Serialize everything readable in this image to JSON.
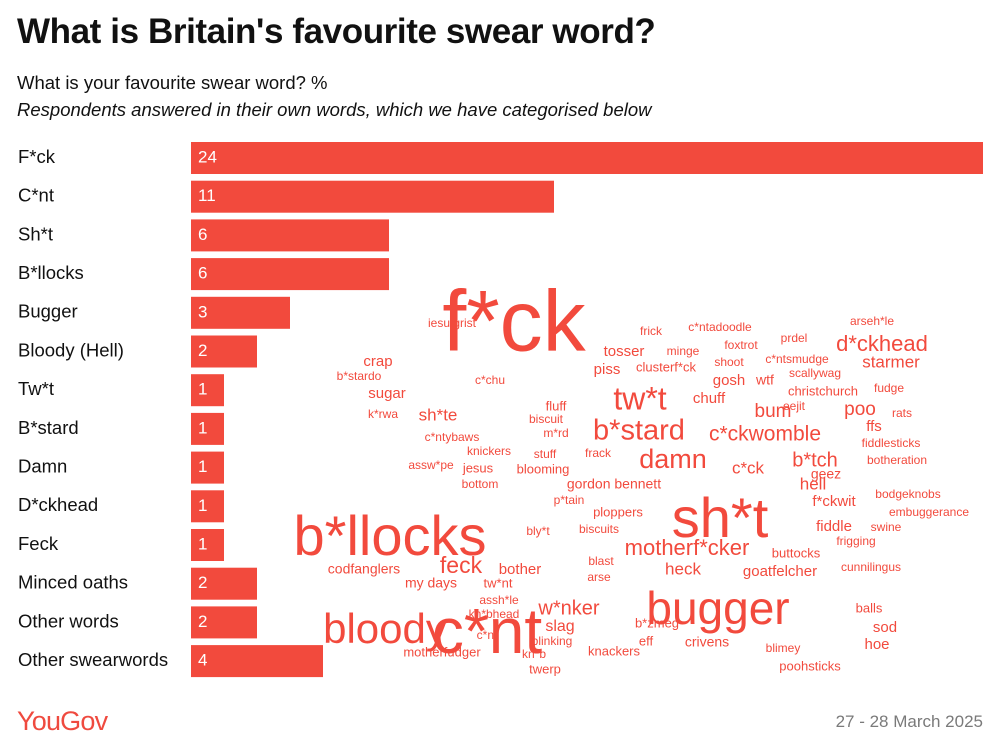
{
  "header": {
    "title": "What is Britain's favourite swear word?",
    "subtitle": "What is your favourite swear word? %",
    "note": "Respondents answered in their own words, which we have categorised below"
  },
  "footer": {
    "logo": "YouGov",
    "date": "27 - 28 March 2025"
  },
  "colors": {
    "bar": "#f24a3d",
    "label_inside": "#ffffff",
    "label_outside": "#111111"
  },
  "chart_data": {
    "type": "bar",
    "orientation": "horizontal",
    "categories": [
      "F*ck",
      "C*nt",
      "Sh*t",
      "B*llocks",
      "Bugger",
      "Bloody (Hell)",
      "Tw*t",
      "B*stard",
      "Damn",
      "D*ckhead",
      "Feck",
      "Minced oaths",
      "Other words",
      "Other swearwords"
    ],
    "values": [
      24,
      11,
      6,
      6,
      3,
      2,
      1,
      1,
      1,
      1,
      1,
      2,
      2,
      4
    ],
    "unit": "%",
    "grid": false
  },
  "word_cloud": [
    {
      "text": "f*ck",
      "size": 86
    },
    {
      "text": "c*nt",
      "size": 64
    },
    {
      "text": "sh*t",
      "size": 56
    },
    {
      "text": "b*llocks",
      "size": 56
    },
    {
      "text": "bugger",
      "size": 46
    },
    {
      "text": "bloody",
      "size": 42
    },
    {
      "text": "tw*t",
      "size": 32
    },
    {
      "text": "b*stard",
      "size": 29
    },
    {
      "text": "damn",
      "size": 27
    },
    {
      "text": "motherf*cker",
      "size": 22
    },
    {
      "text": "feck",
      "size": 23
    },
    {
      "text": "d*ckhead",
      "size": 22
    },
    {
      "text": "c*ckwomble",
      "size": 21
    },
    {
      "text": "b*tch",
      "size": 20
    },
    {
      "text": "w*nker",
      "size": 20
    },
    {
      "text": "bum",
      "size": 19
    },
    {
      "text": "poo",
      "size": 19
    },
    {
      "text": "starmer",
      "size": 17
    },
    {
      "text": "sh*te",
      "size": 17
    },
    {
      "text": "c*ck",
      "size": 17
    },
    {
      "text": "heck",
      "size": 17
    },
    {
      "text": "hell",
      "size": 17
    },
    {
      "text": "slag",
      "size": 16
    },
    {
      "text": "bother",
      "size": 15
    },
    {
      "text": "crap",
      "size": 15
    },
    {
      "text": "tosser",
      "size": 15
    },
    {
      "text": "piss",
      "size": 15
    },
    {
      "text": "sugar",
      "size": 15
    },
    {
      "text": "chuff",
      "size": 15
    },
    {
      "text": "gosh",
      "size": 15
    },
    {
      "text": "goatfelcher",
      "size": 15
    },
    {
      "text": "fiddle",
      "size": 15
    },
    {
      "text": "f*ckwit",
      "size": 15
    },
    {
      "text": "sod",
      "size": 15
    },
    {
      "text": "hoe",
      "size": 15
    },
    {
      "text": "ffs",
      "size": 15
    },
    {
      "text": "wtf",
      "size": 14
    },
    {
      "text": "geez",
      "size": 14
    },
    {
      "text": "my days",
      "size": 14
    },
    {
      "text": "codfanglers",
      "size": 14
    },
    {
      "text": "gordon bennett",
      "size": 14
    },
    {
      "text": "crivens",
      "size": 14
    },
    {
      "text": "twerp",
      "size": 13
    },
    {
      "text": "eff",
      "size": 13
    },
    {
      "text": "fluff",
      "size": 13
    },
    {
      "text": "jesus",
      "size": 13
    },
    {
      "text": "blooming",
      "size": 13
    },
    {
      "text": "ploppers",
      "size": 13
    },
    {
      "text": "knackers",
      "size": 13
    },
    {
      "text": "buttocks",
      "size": 13
    },
    {
      "text": "balls",
      "size": 13
    },
    {
      "text": "b*zmeg",
      "size": 13
    },
    {
      "text": "tw*nt",
      "size": 13
    },
    {
      "text": "motherfudger",
      "size": 13
    },
    {
      "text": "poohsticks",
      "size": 13
    },
    {
      "text": "christchurch",
      "size": 13
    },
    {
      "text": "clusterf*ck",
      "size": 13
    },
    {
      "text": "shoot",
      "size": 12
    },
    {
      "text": "frack",
      "size": 12
    },
    {
      "text": "bottom",
      "size": 12
    },
    {
      "text": "biscuit",
      "size": 12
    },
    {
      "text": "biscuits",
      "size": 12
    },
    {
      "text": "blast",
      "size": 12
    },
    {
      "text": "arse",
      "size": 12
    },
    {
      "text": "minge",
      "size": 12
    },
    {
      "text": "frick",
      "size": 12
    },
    {
      "text": "prdel",
      "size": 12
    },
    {
      "text": "foxtrot",
      "size": 12
    },
    {
      "text": "c*ntadoodle",
      "size": 12
    },
    {
      "text": "c*ntsmudge",
      "size": 12
    },
    {
      "text": "scallywag",
      "size": 12
    },
    {
      "text": "arseh*le",
      "size": 12
    },
    {
      "text": "fudge",
      "size": 12
    },
    {
      "text": "eejit",
      "size": 12
    },
    {
      "text": "rats",
      "size": 12
    },
    {
      "text": "fiddlesticks",
      "size": 12
    },
    {
      "text": "botheration",
      "size": 12
    },
    {
      "text": "bodgeknobs",
      "size": 12
    },
    {
      "text": "embuggerance",
      "size": 12
    },
    {
      "text": "swine",
      "size": 12
    },
    {
      "text": "frigging",
      "size": 12
    },
    {
      "text": "cunnilingus",
      "size": 12
    },
    {
      "text": "blimey",
      "size": 12
    },
    {
      "text": "blinking",
      "size": 12
    },
    {
      "text": "kn*b",
      "size": 12
    },
    {
      "text": "kn*bhead",
      "size": 12
    },
    {
      "text": "assh*le",
      "size": 12
    },
    {
      "text": "c*nt",
      "size": 12
    },
    {
      "text": "bly*t",
      "size": 12
    },
    {
      "text": "p*tain",
      "size": 12
    },
    {
      "text": "stuff",
      "size": 12
    },
    {
      "text": "knickers",
      "size": 12
    },
    {
      "text": "assw*pe",
      "size": 12
    },
    {
      "text": "c*ntybaws",
      "size": 12
    },
    {
      "text": "m*rd",
      "size": 12
    },
    {
      "text": "k*rwa",
      "size": 12
    },
    {
      "text": "b*stardo",
      "size": 12
    },
    {
      "text": "c*chu",
      "size": 12
    },
    {
      "text": "iesu grist",
      "size": 12
    }
  ]
}
